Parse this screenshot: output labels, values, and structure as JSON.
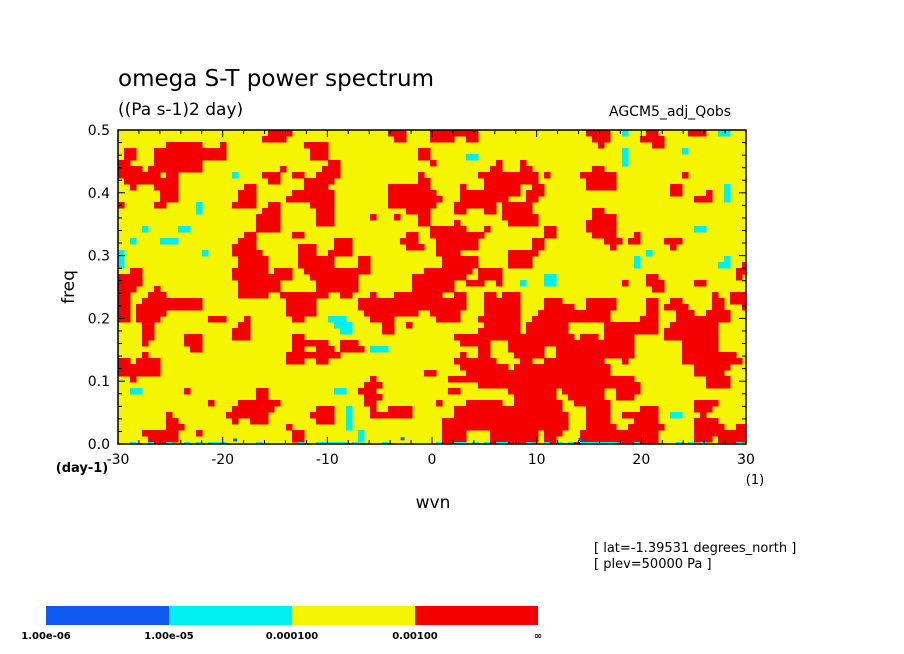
{
  "chart_data": {
    "type": "heatmap",
    "title": "omega S-T power spectrum",
    "units": "((Pa s-1)2 day)",
    "run_name": "AGCM5_adj_Qobs",
    "xlabel": "wvn",
    "ylabel": "freq",
    "x_unit": "(1)",
    "y_unit": "(day-1)",
    "xlim": [
      -30,
      30
    ],
    "ylim": [
      0,
      0.5
    ],
    "x_ticks": [
      "-30",
      "-20",
      "-10",
      "0",
      "10",
      "20",
      "30"
    ],
    "y_ticks": [
      "0.0",
      "0.1",
      "0.2",
      "0.3",
      "0.4",
      "0.5"
    ],
    "info": [
      "[ lat=-1.39531 degrees_north ]",
      "[ plev=50000 Pa ]"
    ],
    "legend": {
      "placement": "bottom-left",
      "labels": [
        "1.00e-06",
        "1.00e-05",
        "0.000100",
        "0.00100",
        "∞"
      ],
      "colors": [
        "#0f5af0",
        "#00f0f0",
        "#f5f500",
        "#f50000"
      ]
    }
  },
  "colors": {
    "blue": "#0f5af0",
    "cyan": "#00f0f0",
    "yellow": "#f5f500",
    "red": "#f50000"
  }
}
